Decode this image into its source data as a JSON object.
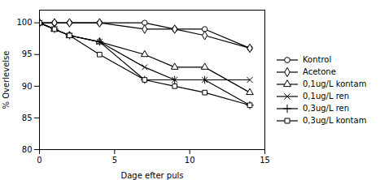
{
  "chart_data": {
    "type": "line",
    "xlabel": "Dage efter puls",
    "ylabel": "% Overlevelse",
    "x": [
      0,
      1,
      2,
      4,
      7,
      9,
      11,
      14
    ],
    "series": [
      {
        "name": "Kontrol",
        "color": "black",
        "marker": "circle",
        "values": [
          100,
          100,
          100,
          100,
          100,
          99,
          99,
          96
        ]
      },
      {
        "name": "Acetone",
        "color": "black",
        "marker": "diamond",
        "values": [
          100,
          100,
          100,
          100,
          99,
          99,
          98,
          96
        ]
      },
      {
        "name": "0,1ug/L kontam",
        "color": "black",
        "marker": "triangle",
        "values": [
          100,
          99,
          98,
          97,
          95,
          93,
          93,
          89
        ]
      },
      {
        "name": "0,1ug/L ren",
        "color": "black",
        "marker": "times",
        "values": [
          100,
          99,
          98,
          97,
          93,
          91,
          91,
          91
        ]
      },
      {
        "name": "0,3ug/L ren",
        "color": "black",
        "marker": "plus",
        "values": [
          100,
          99,
          98,
          97,
          91,
          91,
          91,
          87
        ]
      },
      {
        "name": "0,3ug/L kontam",
        "color": "black",
        "marker": "square",
        "values": [
          100,
          99,
          98,
          95,
          91,
          90,
          89,
          87
        ]
      }
    ],
    "xlim": [
      0,
      15
    ],
    "ylim": [
      80,
      102
    ],
    "xticks": [
      0,
      5,
      10,
      15
    ],
    "yticks": [
      80,
      85,
      90,
      95,
      100
    ],
    "grid": false,
    "legend": "right"
  }
}
